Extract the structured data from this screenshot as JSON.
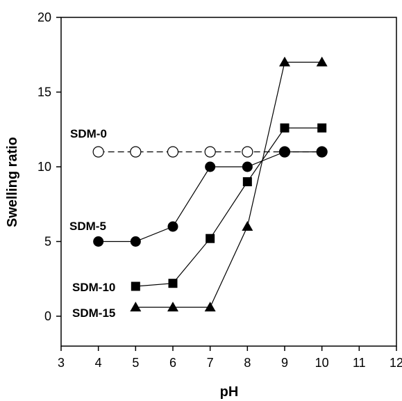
{
  "chart_data": {
    "type": "line",
    "xlabel": "pH",
    "ylabel": "Swelling ratio",
    "xlim": [
      3,
      12
    ],
    "ylim": [
      -2,
      20
    ],
    "xticks": [
      3,
      4,
      5,
      6,
      7,
      8,
      9,
      10,
      11,
      12
    ],
    "yticks": [
      0,
      5,
      10,
      15,
      20
    ],
    "grid": false,
    "series": [
      {
        "name": "SDM-0",
        "marker": "circle-open",
        "line": "dashed",
        "color": "#000000",
        "x": [
          4,
          5,
          6,
          7,
          8,
          9,
          10
        ],
        "y": [
          11,
          11,
          11,
          11,
          11,
          11,
          11
        ]
      },
      {
        "name": "SDM-5",
        "marker": "circle-filled",
        "line": "solid",
        "color": "#000000",
        "x": [
          4,
          5,
          6,
          7,
          8,
          9,
          10
        ],
        "y": [
          5,
          5,
          6,
          10,
          10,
          11,
          11
        ]
      },
      {
        "name": "SDM-10",
        "marker": "square-filled",
        "line": "solid",
        "color": "#000000",
        "x": [
          5,
          6,
          7,
          8,
          9,
          10
        ],
        "y": [
          2,
          2.2,
          5.2,
          9,
          12.6,
          12.6
        ]
      },
      {
        "name": "SDM-15",
        "marker": "triangle-filled",
        "line": "solid",
        "color": "#000000",
        "x": [
          5,
          6,
          7,
          8,
          9,
          10
        ],
        "y": [
          0.6,
          0.6,
          0.6,
          6,
          17,
          17
        ]
      }
    ]
  }
}
